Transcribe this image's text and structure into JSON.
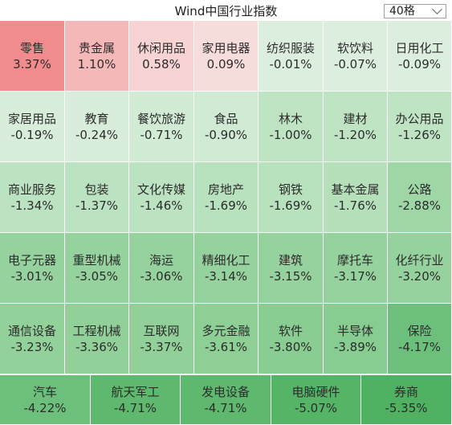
{
  "header": {
    "title": "Wind中国行业指数",
    "grid_select": "40格"
  },
  "tiles": [
    {
      "name": "零售",
      "value": "3.37%",
      "color": "#f08c8e"
    },
    {
      "name": "贵金属",
      "value": "1.10%",
      "color": "#f5b8b9"
    },
    {
      "name": "休闲用品",
      "value": "0.58%",
      "color": "#f7d3d4"
    },
    {
      "name": "家用电器",
      "value": "0.09%",
      "color": "#f7dcdc"
    },
    {
      "name": "纺织服装",
      "value": "-0.01%",
      "color": "#dcefdf"
    },
    {
      "name": "软饮料",
      "value": "-0.07%",
      "color": "#dcefdf"
    },
    {
      "name": "日用化工",
      "value": "-0.09%",
      "color": "#dcefdf"
    },
    {
      "name": "家居用品",
      "value": "-0.19%",
      "color": "#d8eedb"
    },
    {
      "name": "教育",
      "value": "-0.24%",
      "color": "#d8eedb"
    },
    {
      "name": "餐饮旅游",
      "value": "-0.71%",
      "color": "#d2ebd5"
    },
    {
      "name": "食品",
      "value": "-0.90%",
      "color": "#d0ead3"
    },
    {
      "name": "林木",
      "value": "-1.00%",
      "color": "#bfe4c4"
    },
    {
      "name": "建材",
      "value": "-1.20%",
      "color": "#bfe4c4"
    },
    {
      "name": "办公用品",
      "value": "-1.26%",
      "color": "#bfe4c4"
    },
    {
      "name": "商业服务",
      "value": "-1.34%",
      "color": "#bce3c1"
    },
    {
      "name": "包装",
      "value": "-1.37%",
      "color": "#bce3c1"
    },
    {
      "name": "文化传媒",
      "value": "-1.46%",
      "color": "#bce3c1"
    },
    {
      "name": "房地产",
      "value": "-1.69%",
      "color": "#b8e1bd"
    },
    {
      "name": "钢铁",
      "value": "-1.69%",
      "color": "#b8e1bd"
    },
    {
      "name": "基本金属",
      "value": "-1.76%",
      "color": "#b5e0ba"
    },
    {
      "name": "公路",
      "value": "-2.88%",
      "color": "#9fd6a6"
    },
    {
      "name": "电子元器",
      "value": "-3.01%",
      "color": "#95d29d"
    },
    {
      "name": "重型机械",
      "value": "-3.05%",
      "color": "#95d29d"
    },
    {
      "name": "海运",
      "value": "-3.06%",
      "color": "#95d29d"
    },
    {
      "name": "精细化工",
      "value": "-3.14%",
      "color": "#95d29d"
    },
    {
      "name": "建筑",
      "value": "-3.15%",
      "color": "#95d29d"
    },
    {
      "name": "摩托车",
      "value": "-3.17%",
      "color": "#95d29d"
    },
    {
      "name": "化纤行业",
      "value": "-3.20%",
      "color": "#95d29d"
    },
    {
      "name": "通信设备",
      "value": "-3.23%",
      "color": "#93d19b"
    },
    {
      "name": "工程机械",
      "value": "-3.36%",
      "color": "#91d099"
    },
    {
      "name": "互联网",
      "value": "-3.37%",
      "color": "#91d099"
    },
    {
      "name": "多元金融",
      "value": "-3.61%",
      "color": "#8dcf95"
    },
    {
      "name": "软件",
      "value": "-3.80%",
      "color": "#89cd92"
    },
    {
      "name": "半导体",
      "value": "-3.89%",
      "color": "#87cc90"
    },
    {
      "name": "保险",
      "value": "-4.17%",
      "color": "#6cc07b"
    },
    {
      "name": "汽车",
      "value": "-4.22%",
      "color": "#6cc07b"
    },
    {
      "name": "航天军工",
      "value": "-4.71%",
      "color": "#5eb96e"
    },
    {
      "name": "发电设备",
      "value": "-4.71%",
      "color": "#5eb96e"
    },
    {
      "name": "电脑硬件",
      "value": "-5.07%",
      "color": "#55b466"
    },
    {
      "name": "券商",
      "value": "-5.35%",
      "color": "#4fb161"
    }
  ]
}
